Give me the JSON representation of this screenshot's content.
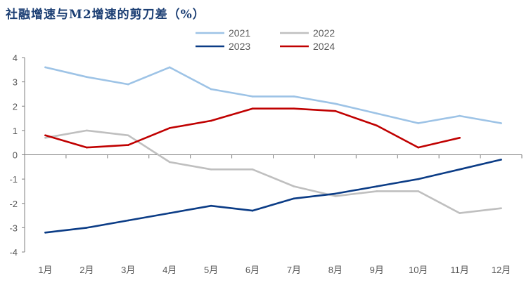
{
  "chart_data": {
    "type": "line",
    "title": "社融增速与M2增速的剪刀差（%）",
    "xlabel": "",
    "ylabel": "",
    "categories": [
      "1月",
      "2月",
      "3月",
      "4月",
      "5月",
      "6月",
      "7月",
      "8月",
      "9月",
      "10月",
      "11月",
      "12月"
    ],
    "ylim": [
      -4,
      4
    ],
    "yticks": [
      "4",
      "3",
      "2",
      "1",
      "0",
      "-1",
      "-2",
      "-3",
      "-4"
    ],
    "grid": false,
    "legend_position": "top-center",
    "series": [
      {
        "name": "2021",
        "color": "#9dc3e6",
        "values": [
          3.6,
          3.2,
          2.9,
          3.6,
          2.7,
          2.4,
          2.4,
          2.1,
          1.7,
          1.3,
          1.6,
          1.3
        ]
      },
      {
        "name": "2022",
        "color": "#bfbfbf",
        "values": [
          0.7,
          1.0,
          0.8,
          -0.3,
          -0.6,
          -0.6,
          -1.3,
          -1.7,
          -1.5,
          -1.5,
          -2.4,
          -2.2
        ]
      },
      {
        "name": "2023",
        "color": "#0b3c86",
        "values": [
          -3.2,
          -3.0,
          -2.7,
          -2.4,
          -2.1,
          -2.3,
          -1.8,
          -1.6,
          -1.3,
          -1.0,
          -0.6,
          -0.2
        ]
      },
      {
        "name": "2024",
        "color": "#c00000",
        "values": [
          0.8,
          0.3,
          0.4,
          1.1,
          1.4,
          1.9,
          1.9,
          1.8,
          1.2,
          0.3,
          0.7,
          null
        ]
      }
    ]
  }
}
